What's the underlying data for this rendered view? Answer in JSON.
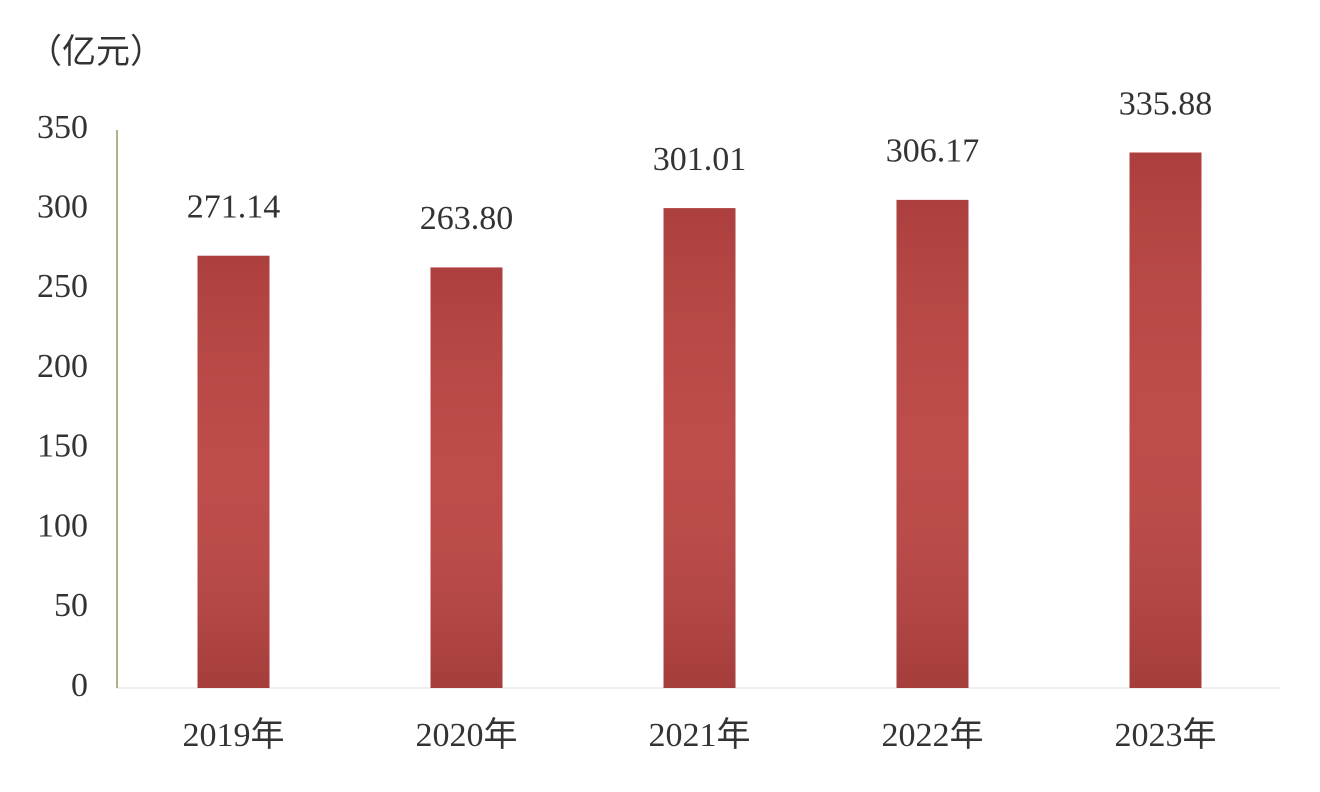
{
  "chart_data": {
    "type": "bar",
    "unit_label": "（亿元）",
    "categories": [
      "2019年",
      "2020年",
      "2021年",
      "2022年",
      "2023年"
    ],
    "values": [
      271.14,
      263.8,
      301.01,
      306.17,
      335.88
    ],
    "value_labels": [
      "271.14",
      "263.80",
      "301.01",
      "306.17",
      "335.88"
    ],
    "color": "#bb4543",
    "ylim": [
      0,
      350
    ],
    "yticks": [
      0,
      50,
      100,
      150,
      200,
      250,
      300,
      350
    ],
    "grid": false
  }
}
